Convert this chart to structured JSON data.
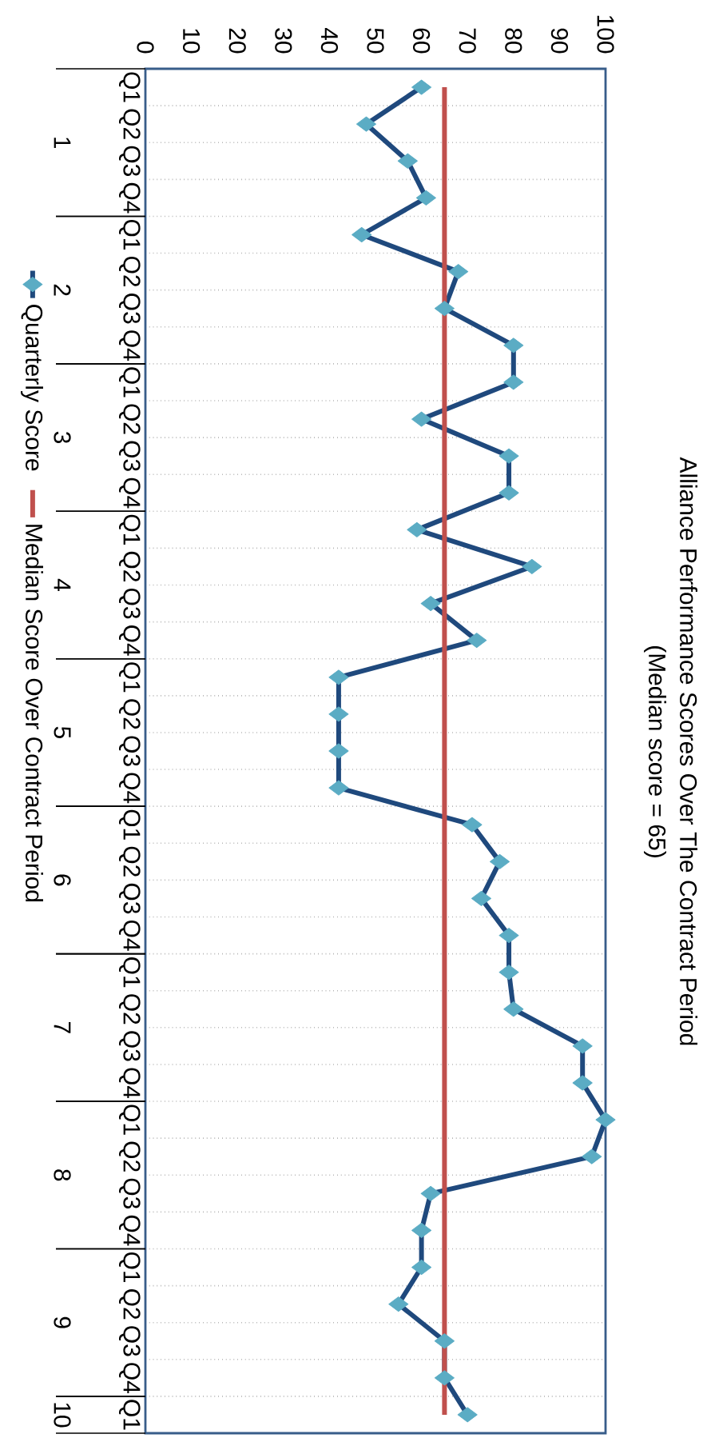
{
  "chart_data": {
    "type": "line",
    "title": "Alliance Performance Scores Over The Contract Period",
    "subtitle": "(Median score = 65)",
    "categories": [
      "Q1",
      "Q2",
      "Q3",
      "Q4",
      "Q1",
      "Q2",
      "Q3",
      "Q4",
      "Q1",
      "Q2",
      "Q3",
      "Q4",
      "Q1",
      "Q2",
      "Q3",
      "Q4",
      "Q1",
      "Q2",
      "Q3",
      "Q4",
      "Q1",
      "Q2",
      "Q3",
      "Q4",
      "Q1",
      "Q2",
      "Q3",
      "Q4",
      "Q1",
      "Q2",
      "Q3",
      "Q4",
      "Q1",
      "Q2",
      "Q3",
      "Q4",
      "Q1"
    ],
    "annotations": [
      "1",
      "2",
      "3",
      "4",
      "5",
      "6",
      "7",
      "8",
      "9",
      "10"
    ],
    "series": [
      {
        "name": "Quarterly Score",
        "color": "#1f497d",
        "marker": "diamond",
        "values": [
          60,
          48,
          57,
          61,
          47,
          68,
          65,
          80,
          80,
          60,
          79,
          79,
          59,
          84,
          62,
          72,
          42,
          42,
          42,
          42,
          71,
          77,
          73,
          79,
          79,
          80,
          95,
          95,
          100,
          97,
          62,
          60,
          60,
          55,
          65,
          65,
          70
        ]
      },
      {
        "name": "Median Score Over Contract Period",
        "color": "#c0504d",
        "marker": "none",
        "values": [
          65,
          65,
          65,
          65,
          65,
          65,
          65,
          65,
          65,
          65,
          65,
          65,
          65,
          65,
          65,
          65,
          65,
          65,
          65,
          65,
          65,
          65,
          65,
          65,
          65,
          65,
          65,
          65,
          65,
          65,
          65,
          65,
          65,
          65,
          65,
          65,
          65
        ]
      }
    ],
    "orientation": "horizontal",
    "xlim": [
      0,
      100
    ],
    "xticks": [
      0,
      10,
      20,
      30,
      40,
      50,
      60,
      70,
      80,
      90,
      100
    ],
    "grid": "y",
    "legend": "left"
  }
}
